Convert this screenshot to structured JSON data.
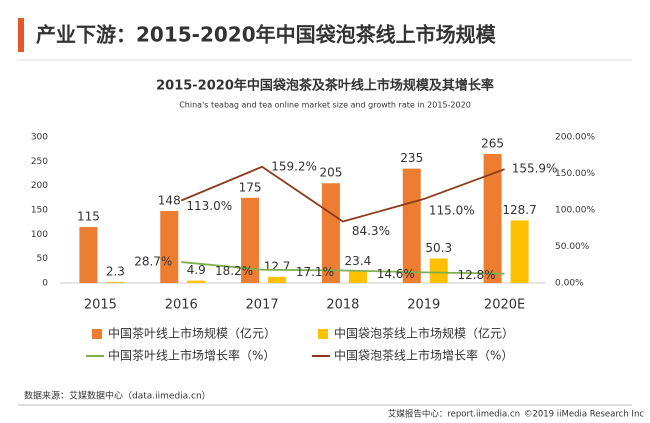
{
  "header": {
    "title": "产业下游：2015-2020年中国袋泡茶线上市场规模"
  },
  "chart_data": {
    "type": "bar_line",
    "title": "2015-2020年中国袋泡茶及茶叶线上市场规模及其增长率",
    "subtitle": "China's teabag  and tea online market size and growth rate in 2015-2020",
    "categories": [
      "2015",
      "2016",
      "2017",
      "2018",
      "2019",
      "2020E"
    ],
    "series": [
      {
        "name": "中国茶叶线上市场规模（亿元）",
        "type": "bar",
        "color": "#ed7d31",
        "values": [
          115,
          148,
          175,
          205,
          235,
          265
        ]
      },
      {
        "name": "中国袋泡茶线上市场规模（亿元）",
        "type": "bar",
        "color": "#ffc000",
        "values": [
          2.3,
          4.9,
          12.7,
          23.4,
          50.3,
          128.7
        ]
      },
      {
        "name": "中国茶叶线上市场增长率（%）",
        "type": "line",
        "axis": "y2",
        "color": "#7fae4e",
        "values": [
          null,
          28.7,
          18.2,
          17.1,
          14.6,
          12.8
        ],
        "value_labels": [
          null,
          "28.7%",
          "18.2%",
          "17.1%",
          "14.6%",
          "12.8%"
        ]
      },
      {
        "name": "中国袋泡茶线上市场增长率（%）",
        "type": "line",
        "axis": "y2",
        "color": "#8b3a1a",
        "values": [
          null,
          113.0,
          159.2,
          84.3,
          115.0,
          155.9
        ],
        "value_labels": [
          null,
          "113.0%",
          "159.2%",
          "84.3%",
          "115.0%",
          "155.9%"
        ]
      }
    ],
    "ylim": [
      0,
      300
    ],
    "yticks": [
      0,
      50,
      100,
      150,
      200,
      250,
      300
    ],
    "y2lim": [
      0,
      200
    ],
    "y2ticks": [
      {
        "value": 0,
        "label": "0.00%"
      },
      {
        "value": 50,
        "label": "50.00%"
      },
      {
        "value": 100,
        "label": "100.00%"
      },
      {
        "value": 150,
        "label": "150.00%"
      },
      {
        "value": 200,
        "label": "200.00%"
      }
    ],
    "legend": "bottom"
  },
  "source": "数据来源：艾媒数据中心（data.iimedia.cn）",
  "footer": {
    "left": "艾媒报告中心：report.iimedia.cn",
    "right": "©2019  iiMedia Research  Inc"
  }
}
